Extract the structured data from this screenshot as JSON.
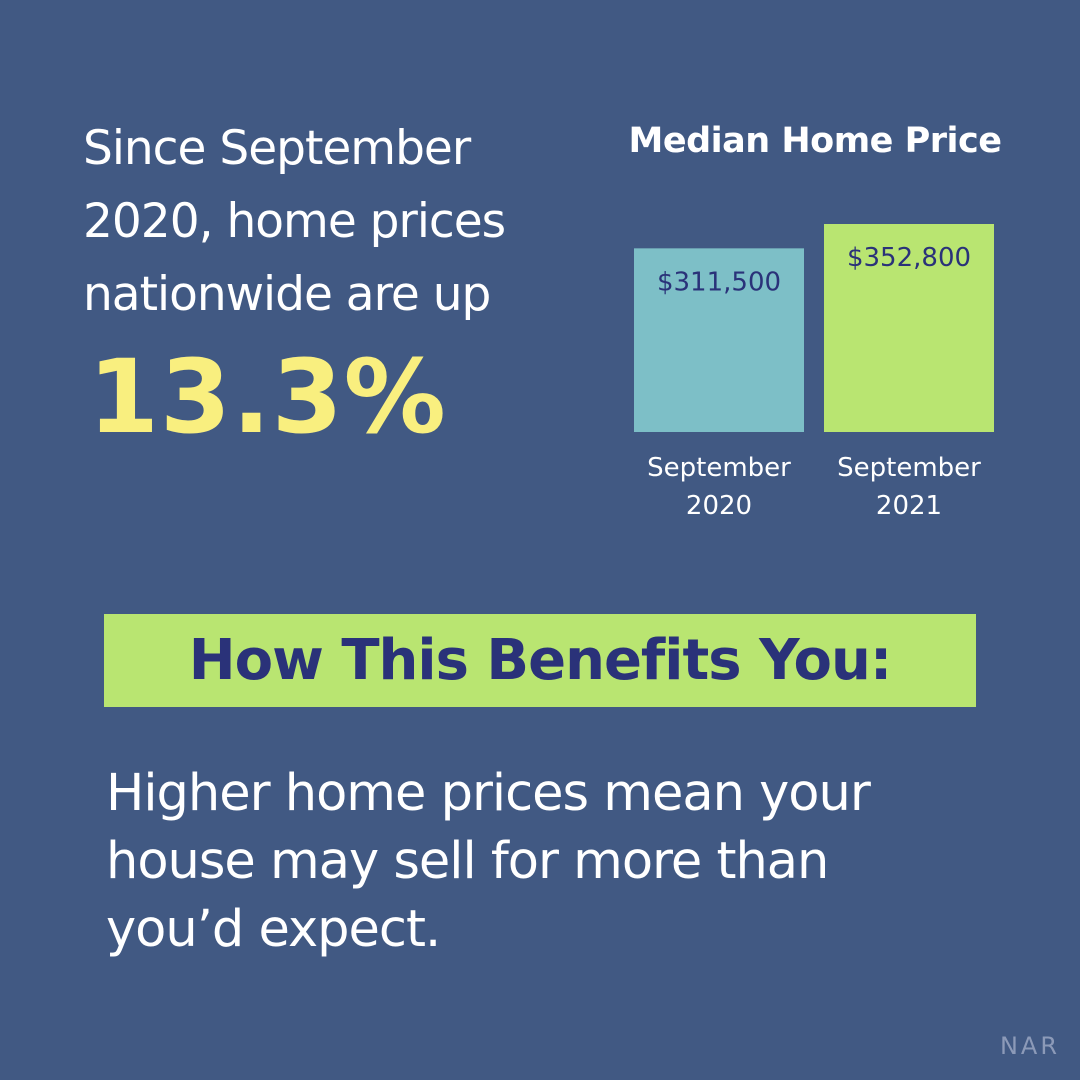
{
  "headline": {
    "lines": [
      "Since September",
      "2020, home prices",
      "nationwide are up"
    ],
    "stat": "13.3%"
  },
  "chart_data": {
    "type": "bar",
    "title": "Median Home Price",
    "categories": [
      [
        "September",
        "2020"
      ],
      [
        "September",
        "2021"
      ]
    ],
    "values": [
      311500,
      352800
    ],
    "value_labels": [
      "$311,500",
      "$352,800"
    ],
    "colors": [
      "#7dbfc7",
      "#b9e571"
    ],
    "label_color": "#2a3279",
    "xlabel": "",
    "ylabel": ""
  },
  "benefit": {
    "title": "How This Benefits You:",
    "lines": [
      "Higher home prices mean your",
      "house may sell for more than",
      "you’d expect."
    ]
  },
  "source": "NAR"
}
